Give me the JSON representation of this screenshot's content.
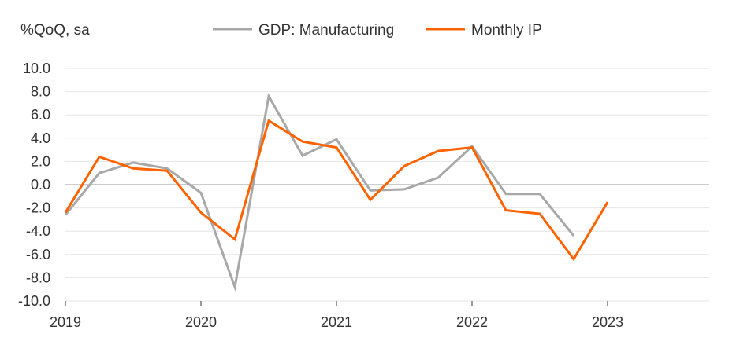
{
  "colors": {
    "gdp_manufacturing": "#a8a8a8",
    "monthly_ip": "#ff6200",
    "grid": "#e6e6e6",
    "zero_line": "#9a9a9a",
    "text": "#333333"
  },
  "chart_data": {
    "type": "line",
    "ylabel": "%QoQ, sa",
    "ylim": [
      -10.0,
      10.0
    ],
    "y_ticks": [
      "10.0",
      "8.0",
      "6.0",
      "4.0",
      "2.0",
      "0.0",
      "-2.0",
      "-4.0",
      "-6.0",
      "-8.0",
      "-10.0"
    ],
    "x_tick_labels": [
      "2019",
      "2020",
      "2021",
      "2022",
      "2023"
    ],
    "x_range": [
      "2019Q1",
      "2023Q4"
    ],
    "grid": true,
    "legend_position": "top-center",
    "series": [
      {
        "name": "GDP: Manufacturing",
        "color": "#a8a8a8",
        "points": [
          [
            "2019Q1",
            -2.6
          ],
          [
            "2019Q2",
            1.0
          ],
          [
            "2019Q3",
            1.9
          ],
          [
            "2019Q4",
            1.4
          ],
          [
            "2020Q1",
            -0.7
          ],
          [
            "2020Q2",
            -8.8
          ],
          [
            "2020Q3",
            7.6
          ],
          [
            "2020Q4",
            2.5
          ],
          [
            "2021Q1",
            3.9
          ],
          [
            "2021Q2",
            -0.5
          ],
          [
            "2021Q3",
            -0.4
          ],
          [
            "2021Q4",
            0.6
          ],
          [
            "2022Q1",
            3.3
          ],
          [
            "2022Q2",
            -0.8
          ],
          [
            "2022Q3",
            -0.8
          ],
          [
            "2022Q4",
            -4.4
          ]
        ]
      },
      {
        "name": "Monthly IP",
        "color": "#ff6200",
        "points": [
          [
            "2019Q1",
            -2.4
          ],
          [
            "2019Q2",
            2.4
          ],
          [
            "2019Q3",
            1.4
          ],
          [
            "2019Q4",
            1.2
          ],
          [
            "2020Q1",
            -2.4
          ],
          [
            "2020Q2",
            -4.7
          ],
          [
            "2020Q3",
            5.5
          ],
          [
            "2020Q4",
            3.7
          ],
          [
            "2021Q1",
            3.2
          ],
          [
            "2021Q2",
            -1.3
          ],
          [
            "2021Q3",
            1.6
          ],
          [
            "2021Q4",
            2.9
          ],
          [
            "2022Q1",
            3.2
          ],
          [
            "2022Q2",
            -2.2
          ],
          [
            "2022Q3",
            -2.5
          ],
          [
            "2022Q4",
            -6.4
          ],
          [
            "2023Q1",
            -1.5
          ]
        ]
      }
    ]
  }
}
